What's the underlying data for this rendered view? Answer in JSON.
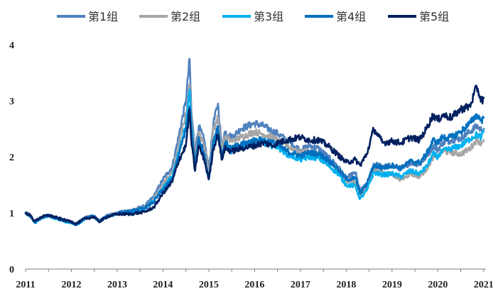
{
  "chart_data": {
    "type": "line",
    "title": "",
    "xlabel": "",
    "ylabel": "",
    "xlim": [
      2011,
      2021.05
    ],
    "ylim": [
      0,
      4
    ],
    "grid": false,
    "legend_position": "top",
    "x_ticks": [
      "2011",
      "2012",
      "2013",
      "2014",
      "2015",
      "2016",
      "2017",
      "2018",
      "2019",
      "2020",
      "2021"
    ],
    "y_ticks": [
      "0",
      "1",
      "2",
      "3",
      "4"
    ],
    "x": [
      2011.0,
      2011.1,
      2011.2,
      2011.35,
      2011.5,
      2011.7,
      2011.9,
      2012.0,
      2012.1,
      2012.3,
      2012.5,
      2012.6,
      2012.8,
      2013.0,
      2013.3,
      2013.6,
      2013.8,
      2014.0,
      2014.2,
      2014.35,
      2014.5,
      2014.58,
      2014.62,
      2014.7,
      2014.78,
      2014.9,
      2015.0,
      2015.1,
      2015.2,
      2015.28,
      2015.35,
      2015.5,
      2015.7,
      2016.0,
      2016.2,
      2016.4,
      2016.5,
      2016.7,
      2017.0,
      2017.2,
      2017.4,
      2017.6,
      2017.8,
      2018.0,
      2018.2,
      2018.3,
      2018.45,
      2018.6,
      2018.8,
      2019.0,
      2019.2,
      2019.4,
      2019.6,
      2019.75,
      2019.9,
      2020.0,
      2020.1,
      2020.3,
      2020.5,
      2020.7,
      2020.85,
      2020.95,
      2021.0
    ],
    "series": [
      {
        "name": "第1组",
        "color": "#4F81BD",
        "values": [
          1.0,
          0.95,
          0.83,
          0.92,
          0.96,
          0.9,
          0.85,
          0.84,
          0.8,
          0.92,
          0.95,
          0.86,
          0.96,
          1.0,
          1.05,
          1.12,
          1.3,
          1.6,
          1.82,
          2.4,
          3.0,
          3.75,
          2.8,
          2.1,
          2.55,
          2.3,
          1.78,
          2.6,
          2.95,
          2.2,
          2.45,
          2.35,
          2.5,
          2.6,
          2.55,
          2.45,
          2.42,
          2.3,
          2.12,
          2.2,
          2.15,
          2.0,
          1.85,
          1.62,
          1.72,
          1.4,
          1.5,
          1.88,
          1.82,
          1.85,
          1.78,
          1.9,
          1.86,
          2.0,
          2.2,
          2.12,
          2.25,
          2.3,
          2.33,
          2.45,
          2.55,
          2.48,
          2.5
        ]
      },
      {
        "name": "第2组",
        "color": "#A6A6A6",
        "values": [
          1.0,
          0.96,
          0.84,
          0.93,
          0.96,
          0.9,
          0.86,
          0.84,
          0.8,
          0.92,
          0.94,
          0.86,
          0.95,
          0.99,
          1.04,
          1.1,
          1.25,
          1.52,
          1.72,
          2.25,
          2.75,
          3.3,
          2.7,
          2.0,
          2.45,
          2.2,
          1.72,
          2.5,
          2.7,
          2.15,
          2.35,
          2.28,
          2.35,
          2.45,
          2.4,
          2.35,
          2.3,
          2.2,
          2.08,
          2.1,
          2.05,
          1.9,
          1.8,
          1.58,
          1.55,
          1.3,
          1.45,
          1.78,
          1.72,
          1.68,
          1.6,
          1.7,
          1.65,
          1.78,
          2.0,
          2.0,
          2.1,
          2.08,
          2.05,
          2.15,
          2.3,
          2.25,
          2.3
        ]
      },
      {
        "name": "第3组",
        "color": "#00B0F0",
        "values": [
          1.0,
          0.94,
          0.82,
          0.91,
          0.95,
          0.89,
          0.84,
          0.83,
          0.78,
          0.9,
          0.93,
          0.85,
          0.94,
          0.98,
          1.02,
          1.08,
          1.22,
          1.45,
          1.65,
          2.1,
          2.55,
          3.2,
          2.55,
          1.8,
          2.3,
          2.0,
          1.6,
          2.25,
          2.45,
          1.95,
          2.2,
          2.1,
          2.18,
          2.25,
          2.25,
          2.2,
          2.18,
          2.05,
          1.95,
          2.0,
          1.98,
          1.85,
          1.72,
          1.5,
          1.48,
          1.25,
          1.4,
          1.72,
          1.68,
          1.7,
          1.65,
          1.75,
          1.7,
          1.82,
          2.05,
          2.0,
          2.1,
          2.15,
          2.2,
          2.32,
          2.4,
          2.35,
          2.45
        ]
      },
      {
        "name": "第4组",
        "color": "#0070C0",
        "values": [
          1.0,
          0.95,
          0.83,
          0.92,
          0.95,
          0.9,
          0.85,
          0.84,
          0.79,
          0.91,
          0.94,
          0.85,
          0.95,
          0.99,
          1.03,
          1.09,
          1.2,
          1.42,
          1.6,
          2.05,
          2.5,
          2.9,
          2.5,
          1.85,
          2.35,
          2.05,
          1.62,
          2.3,
          2.55,
          2.0,
          2.25,
          2.15,
          2.22,
          2.3,
          2.3,
          2.25,
          2.22,
          2.1,
          2.02,
          2.08,
          2.05,
          1.95,
          1.8,
          1.6,
          1.62,
          1.35,
          1.52,
          1.85,
          1.8,
          1.85,
          1.8,
          1.92,
          1.9,
          2.05,
          2.3,
          2.25,
          2.35,
          2.35,
          2.45,
          2.6,
          2.75,
          2.65,
          2.7
        ]
      },
      {
        "name": "第5组",
        "color": "#002060",
        "values": [
          1.0,
          0.96,
          0.85,
          0.93,
          0.96,
          0.91,
          0.86,
          0.85,
          0.8,
          0.9,
          0.93,
          0.84,
          0.94,
          0.98,
          0.98,
          1.02,
          1.1,
          1.35,
          1.55,
          1.95,
          2.2,
          2.85,
          2.25,
          1.75,
          2.2,
          1.95,
          1.6,
          2.15,
          2.4,
          1.95,
          2.15,
          2.1,
          2.15,
          2.2,
          2.25,
          2.2,
          2.25,
          2.3,
          2.35,
          2.3,
          2.3,
          2.2,
          2.05,
          1.9,
          1.95,
          1.85,
          2.05,
          2.5,
          2.25,
          2.28,
          2.25,
          2.35,
          2.3,
          2.5,
          2.75,
          2.65,
          2.75,
          2.7,
          2.85,
          2.9,
          3.25,
          3.0,
          3.05
        ]
      }
    ]
  }
}
